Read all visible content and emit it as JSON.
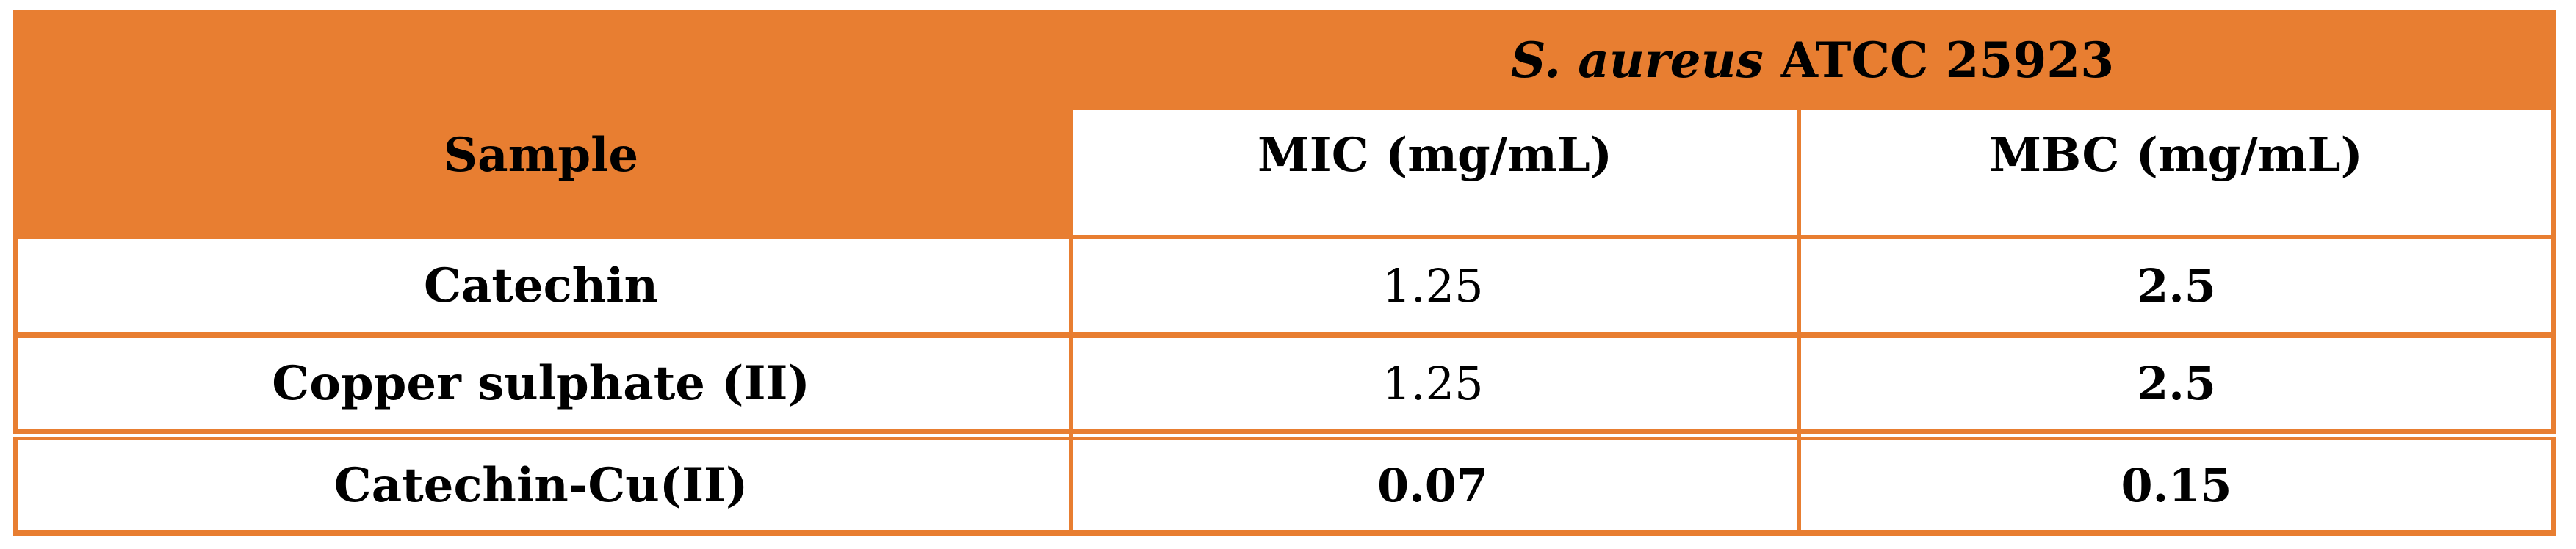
{
  "colors": {
    "orange": "#E87E31",
    "text": "#000000",
    "background": "#FFFFFF"
  },
  "table": {
    "title": {
      "organism": "S. aureus",
      "strain": " ATCC 25923"
    },
    "columns": {
      "sample": "Sample",
      "mic": "MIC (mg/mL)",
      "mbc": "MBC (mg/mL)"
    },
    "rows": [
      {
        "sample": "Catechin",
        "mic": "1.25",
        "mbc": "2.5",
        "mic_bold": false,
        "mbc_bold": true
      },
      {
        "sample": "Copper sulphate (II)",
        "mic": "1.25",
        "mbc": "2.5",
        "mic_bold": false,
        "mbc_bold": true
      },
      {
        "sample": "Catechin-Cu(II)",
        "mic": "0.07",
        "mbc": "0.15",
        "mic_bold": true,
        "mbc_bold": true
      }
    ]
  }
}
